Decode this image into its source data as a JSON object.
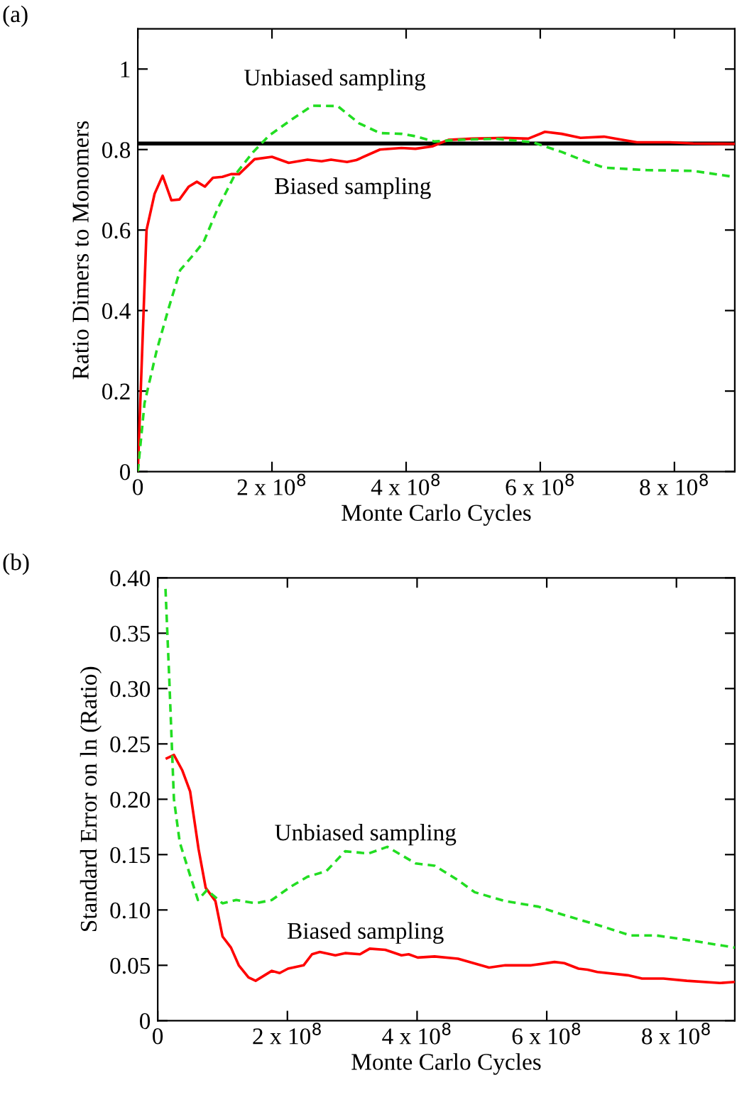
{
  "chart_data": [
    {
      "type": "line",
      "xlabel": "Monte Carlo Cycles",
      "ylabel": "Ratio Dimers to Monomers",
      "xlim": [
        0,
        890000000.0
      ],
      "ylim": [
        0,
        1.1
      ],
      "xticks": [
        {
          "value": 0,
          "label": "0"
        },
        {
          "value": 200000000.0,
          "label": "2 x 10$^{8}$"
        },
        {
          "value": 400000000.0,
          "label": "4 x 10$^{8}$"
        },
        {
          "value": 600000000.0,
          "label": "6 x 10$^{8}$"
        },
        {
          "value": 800000000.0,
          "label": "8 x 10$^{8}$"
        }
      ],
      "yticks": [
        0,
        0.2,
        0.4,
        0.6,
        0.8,
        1
      ],
      "grid": false,
      "legend": false,
      "annotations": [
        "(a)"
      ],
      "ref_lines": [
        {
          "axis": "y",
          "value": 0.815,
          "color": "#000000",
          "line_style": "solid"
        }
      ],
      "series": [
        {
          "name": "Biased sampling",
          "color": "#ff0000",
          "line_style": "solid",
          "x": [
            0,
            13000000.0,
            25000000.0,
            37000000.0,
            50000000.0,
            62000000.0,
            76000000.0,
            88000000.0,
            100000000.0,
            112000000.0,
            126000000.0,
            139000000.0,
            151000000.0,
            174000000.0,
            200000000.0,
            225000000.0,
            253000000.0,
            274000000.0,
            288000000.0,
            312000000.0,
            326000000.0,
            361000000.0,
            393000000.0,
            414000000.0,
            439000000.0,
            463000000.0,
            498000000.0,
            547000000.0,
            582000000.0,
            607000000.0,
            632000000.0,
            660000000.0,
            695000000.0,
            716000000.0,
            744000000.0,
            793000000.0,
            828000000.0,
            889000000.0
          ],
          "values": [
            0,
            0.6,
            0.69,
            0.735,
            0.674,
            0.676,
            0.708,
            0.72,
            0.708,
            0.73,
            0.732,
            0.739,
            0.739,
            0.776,
            0.782,
            0.767,
            0.775,
            0.771,
            0.775,
            0.769,
            0.774,
            0.8,
            0.804,
            0.802,
            0.808,
            0.824,
            0.827,
            0.829,
            0.827,
            0.844,
            0.839,
            0.829,
            0.832,
            0.826,
            0.818,
            0.818,
            0.815,
            0.814
          ]
        },
        {
          "name": "Unbiased sampling",
          "color": "#22dd22",
          "line_style": "dashed",
          "x": [
            0,
            10000000.0,
            28000000.0,
            46000000.0,
            63000000.0,
            81000000.0,
            98000000.0,
            119000000.0,
            144000000.0,
            172000000.0,
            196000000.0,
            228000000.0,
            260000000.0,
            298000000.0,
            330000000.0,
            361000000.0,
            393000000.0,
            414000000.0,
            442000000.0,
            477000000.0,
            533000000.0,
            589000000.0,
            632000000.0,
            667000000.0,
            695000000.0,
            758000000.0,
            828000000.0,
            889000000.0
          ],
          "values": [
            0,
            0.17,
            0.3,
            0.406,
            0.5,
            0.535,
            0.57,
            0.653,
            0.735,
            0.794,
            0.835,
            0.873,
            0.909,
            0.908,
            0.865,
            0.841,
            0.839,
            0.833,
            0.82,
            0.824,
            0.827,
            0.818,
            0.794,
            0.771,
            0.755,
            0.749,
            0.747,
            0.732
          ]
        }
      ]
    },
    {
      "type": "line",
      "xlabel": "Monte Carlo Cycles",
      "ylabel": "Standard Error on ln (Ratio)",
      "xlim": [
        0,
        890000000.0
      ],
      "ylim": [
        0,
        0.4
      ],
      "xticks": [
        {
          "value": 0,
          "label": "0"
        },
        {
          "value": 200000000.0,
          "label": "2 x 10$^{8}$"
        },
        {
          "value": 400000000.0,
          "label": "4 x 10$^{8}$"
        },
        {
          "value": 600000000.0,
          "label": "6 x 10$^{8}$"
        },
        {
          "value": 800000000.0,
          "label": "8 x 10$^{8}$"
        }
      ],
      "yticks": [
        0,
        {
          "value": 0.05,
          "label": "0.05"
        },
        {
          "value": 0.1,
          "label": "0.10"
        },
        {
          "value": 0.15,
          "label": "0.15"
        },
        {
          "value": 0.2,
          "label": "0.20"
        },
        {
          "value": 0.25,
          "label": "0.25"
        },
        {
          "value": 0.3,
          "label": "0.30"
        },
        {
          "value": 0.35,
          "label": "0.35"
        },
        {
          "value": 0.4,
          "label": "0.40"
        }
      ],
      "grid": false,
      "legend": false,
      "annotations": [
        "(b)"
      ],
      "series": [
        {
          "name": "Biased sampling",
          "color": "#ff0000",
          "line_style": "solid",
          "x": [
            14000000.0,
            25000000.0,
            38000000.0,
            50000000.0,
            63000000.0,
            74000000.0,
            89000000.0,
            100000000.0,
            113000000.0,
            125000000.0,
            140000000.0,
            151000000.0,
            176000000.0,
            188000000.0,
            201000000.0,
            225000000.0,
            238000000.0,
            250000000.0,
            274000000.0,
            289000000.0,
            312000000.0,
            327000000.0,
            351000000.0,
            376000000.0,
            387000000.0,
            401000000.0,
            427000000.0,
            463000000.0,
            511000000.0,
            536000000.0,
            576000000.0,
            612000000.0,
            627000000.0,
            649000000.0,
            663000000.0,
            678000000.0,
            725000000.0,
            747000000.0,
            780000000.0,
            816000000.0,
            867000000.0,
            890000000.0
          ],
          "values": [
            0.237,
            0.24,
            0.226,
            0.207,
            0.155,
            0.12,
            0.108,
            0.076,
            0.066,
            0.05,
            0.039,
            0.036,
            0.045,
            0.043,
            0.047,
            0.05,
            0.06,
            0.062,
            0.059,
            0.061,
            0.06,
            0.065,
            0.064,
            0.059,
            0.06,
            0.057,
            0.058,
            0.056,
            0.048,
            0.05,
            0.05,
            0.053,
            0.052,
            0.047,
            0.046,
            0.044,
            0.041,
            0.038,
            0.038,
            0.036,
            0.034,
            0.035
          ]
        },
        {
          "name": "Unbiased sampling",
          "color": "#22dd22",
          "line_style": "dashed",
          "x": [
            12000000.0,
            18000000.0,
            25000000.0,
            34000000.0,
            49000000.0,
            62000000.0,
            76000000.0,
            100000000.0,
            121000000.0,
            151000000.0,
            176000000.0,
            205000000.0,
            231000000.0,
            260000000.0,
            289000000.0,
            325000000.0,
            354000000.0,
            398000000.0,
            427000000.0,
            463000000.0,
            489000000.0,
            536000000.0,
            587000000.0,
            623000000.0,
            681000000.0,
            729000000.0,
            769000000.0,
            827000000.0,
            890000000.0
          ],
          "values": [
            0.39,
            0.306,
            0.2,
            0.161,
            0.133,
            0.109,
            0.118,
            0.106,
            0.109,
            0.106,
            0.109,
            0.121,
            0.13,
            0.135,
            0.153,
            0.151,
            0.157,
            0.142,
            0.14,
            0.127,
            0.116,
            0.108,
            0.103,
            0.096,
            0.086,
            0.077,
            0.077,
            0.072,
            0.066
          ]
        }
      ]
    }
  ]
}
